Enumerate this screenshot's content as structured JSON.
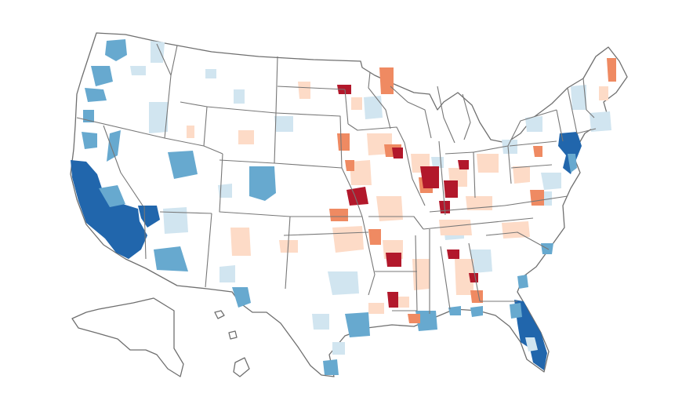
{
  "map": {
    "type": "choropleth",
    "title": "",
    "palette": {
      "blue_dark": "#2166ac",
      "blue_mid": "#67a9cf",
      "blue_light": "#d1e5f0",
      "neutral": "#ffffff",
      "red_light": "#fddbc7",
      "red_mid": "#ef8a62",
      "red_dark": "#b2182b",
      "border": "#777777"
    }
  }
}
